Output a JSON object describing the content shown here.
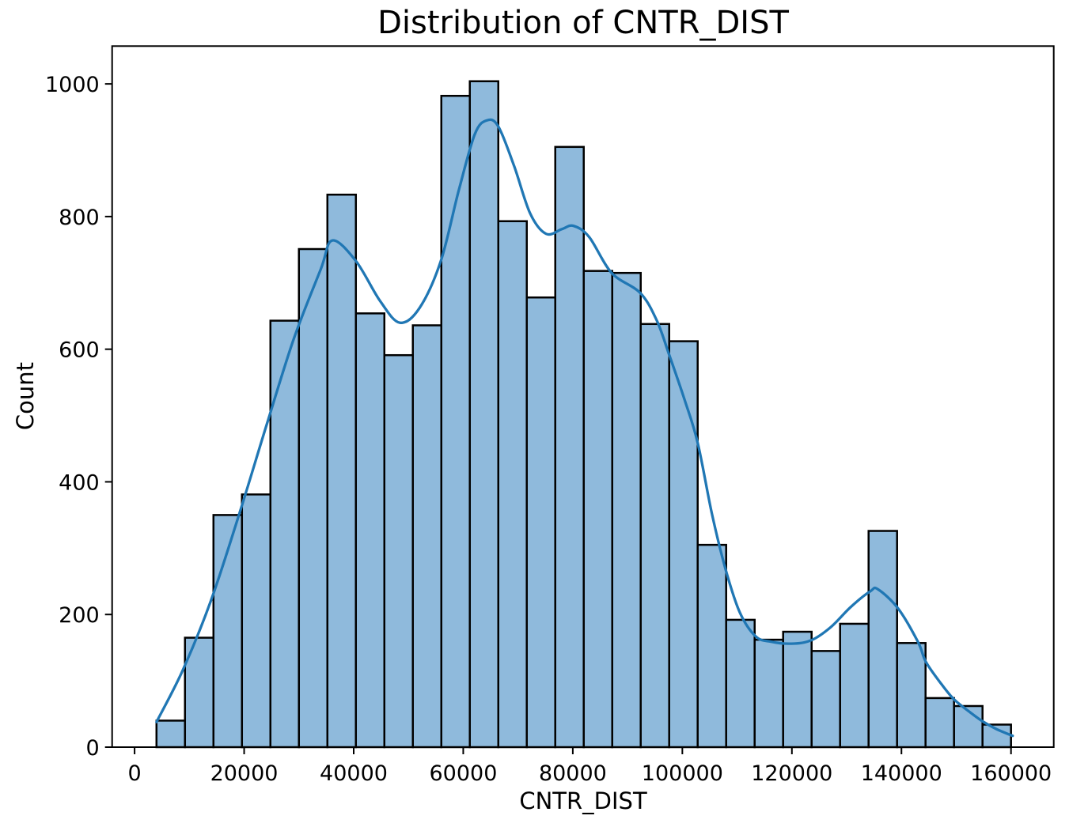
{
  "chart_data": {
    "type": "histogram",
    "title": "Distribution of CNTR_DIST",
    "xlabel": "CNTR_DIST",
    "ylabel": "Count",
    "grid": false,
    "legend": null,
    "bin_edges": [
      4000,
      9200,
      14400,
      19600,
      24800,
      30000,
      35200,
      40400,
      45600,
      50800,
      56000,
      61200,
      66400,
      71600,
      76800,
      82000,
      87200,
      92400,
      97600,
      102800,
      108000,
      113200,
      118400,
      123600,
      128800,
      134000,
      139200,
      144400,
      149600,
      154800,
      160000
    ],
    "counts": [
      40,
      165,
      350,
      381,
      643,
      751,
      833,
      654,
      591,
      636,
      982,
      1004,
      793,
      678,
      905,
      718,
      715,
      638,
      612,
      305,
      192,
      162,
      174,
      145,
      186,
      326,
      157,
      74,
      62,
      34
    ],
    "kde_points": [
      [
        4000,
        38
      ],
      [
        8800,
        116
      ],
      [
        13900,
        220
      ],
      [
        18900,
        346
      ],
      [
        24000,
        483
      ],
      [
        29000,
        614
      ],
      [
        34000,
        721
      ],
      [
        36100,
        764
      ],
      [
        40400,
        733
      ],
      [
        44800,
        673
      ],
      [
        48400,
        640
      ],
      [
        52000,
        662
      ],
      [
        55900,
        733
      ],
      [
        59200,
        840
      ],
      [
        62100,
        924
      ],
      [
        64300,
        945
      ],
      [
        66400,
        936
      ],
      [
        69300,
        876
      ],
      [
        72200,
        805
      ],
      [
        75100,
        774
      ],
      [
        78000,
        781
      ],
      [
        80100,
        786
      ],
      [
        83000,
        769
      ],
      [
        87100,
        715
      ],
      [
        92300,
        685
      ],
      [
        95300,
        644
      ],
      [
        97500,
        594
      ],
      [
        100400,
        524
      ],
      [
        102800,
        459
      ],
      [
        105400,
        352
      ],
      [
        107900,
        268
      ],
      [
        110500,
        203
      ],
      [
        113400,
        167
      ],
      [
        116200,
        159
      ],
      [
        119900,
        156
      ],
      [
        123500,
        161
      ],
      [
        127100,
        181
      ],
      [
        130700,
        211
      ],
      [
        134300,
        235
      ],
      [
        135700,
        238
      ],
      [
        139400,
        209
      ],
      [
        143000,
        159
      ],
      [
        144500,
        128
      ],
      [
        147300,
        95
      ],
      [
        149600,
        72
      ],
      [
        152300,
        54
      ],
      [
        154800,
        39
      ],
      [
        157400,
        27
      ],
      [
        160300,
        17
      ]
    ],
    "x_ticks": {
      "values": [
        0,
        20000,
        40000,
        60000,
        80000,
        100000,
        120000,
        140000,
        160000
      ],
      "labels": [
        "0",
        "20000",
        "40000",
        "60000",
        "80000",
        "100000",
        "120000",
        "140000",
        "160000"
      ]
    },
    "y_ticks": {
      "values": [
        0,
        200,
        400,
        600,
        800,
        1000
      ],
      "labels": [
        "0",
        "200",
        "400",
        "600",
        "800",
        "1000"
      ]
    },
    "xlim": [
      -4100,
      167800
    ],
    "ylim": [
      0,
      1057
    ],
    "colors": {
      "bar_fill": "#8fbadc",
      "bar_edge": "#000000",
      "kde_line": "#2077b4",
      "spine": "#000000",
      "text": "#000000"
    }
  }
}
